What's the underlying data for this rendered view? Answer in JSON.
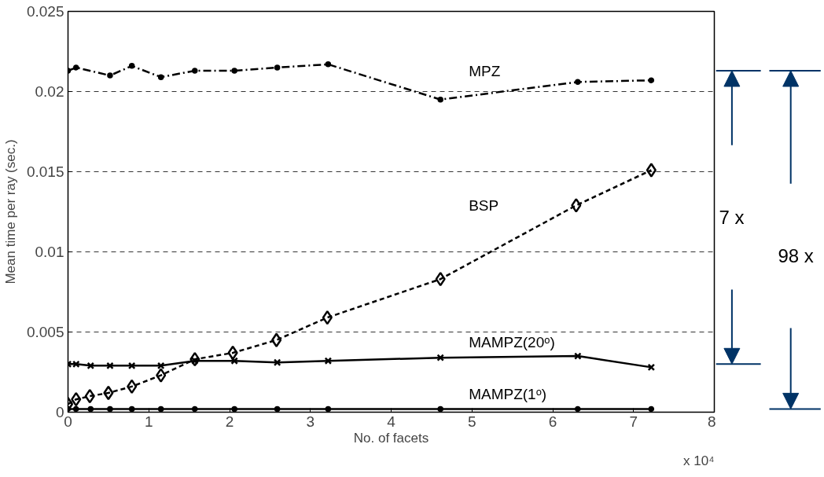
{
  "chart_data": {
    "type": "line",
    "xlabel": "No. of facets",
    "ylabel": "Mean time per ray (sec.)",
    "xlim": [
      0,
      8
    ],
    "xticks": [
      0,
      1,
      2,
      3,
      4,
      5,
      6,
      7,
      8
    ],
    "ylim": [
      0,
      0.025
    ],
    "yticks": [
      0,
      0.005,
      0.01,
      0.015,
      0.02,
      0.025
    ],
    "grid": "y",
    "annotations": [
      "x 10⁴",
      "7 x",
      "98 x"
    ],
    "series": [
      {
        "name": "MPZ",
        "color": "#000000",
        "line_style": "dashdot",
        "marker": "circle",
        "x": [
          0,
          0.1,
          0.52,
          0.79,
          1.15,
          1.57,
          2.06,
          2.59,
          3.22,
          4.61,
          6.31,
          7.22
        ],
        "values": [
          0.0213,
          0.0215,
          0.021,
          0.0216,
          0.0209,
          0.0213,
          0.0213,
          0.0215,
          0.0217,
          0.0195,
          0.0206,
          0.0207
        ]
      },
      {
        "name": "BSP",
        "color": "#000000",
        "line_style": "dashed",
        "marker": "diamond",
        "x": [
          0,
          0.1,
          0.27,
          0.5,
          0.79,
          1.15,
          1.57,
          2.04,
          2.58,
          3.21,
          4.61,
          6.29,
          7.22
        ],
        "values": [
          0.0005,
          0.0008,
          0.001,
          0.0012,
          0.0016,
          0.0023,
          0.0033,
          0.0037,
          0.0045,
          0.0059,
          0.0083,
          0.0129,
          0.0151
        ]
      },
      {
        "name": "MAMPZ(20ᵒ)",
        "color": "#000000",
        "line_style": "solid",
        "marker": "cross",
        "x": [
          0,
          0.1,
          0.28,
          0.52,
          0.79,
          1.15,
          1.57,
          2.06,
          2.59,
          3.22,
          4.61,
          6.31,
          7.22
        ],
        "values": [
          0.003,
          0.003,
          0.0029,
          0.0029,
          0.0029,
          0.0029,
          0.0032,
          0.0032,
          0.0031,
          0.0032,
          0.0034,
          0.0035,
          0.0028
        ]
      },
      {
        "name": "MAMPZ(1ᵒ)",
        "color": "#000000",
        "line_style": "solid",
        "marker": "circle",
        "x": [
          0,
          0.1,
          0.28,
          0.52,
          0.79,
          1.15,
          1.57,
          2.06,
          2.59,
          3.22,
          4.61,
          6.31,
          7.22
        ],
        "values": [
          0.0002,
          0.0002,
          0.0002,
          0.0002,
          0.0002,
          0.0002,
          0.0002,
          0.0002,
          0.0002,
          0.0002,
          0.0002,
          0.0002,
          0.0002
        ]
      }
    ]
  }
}
